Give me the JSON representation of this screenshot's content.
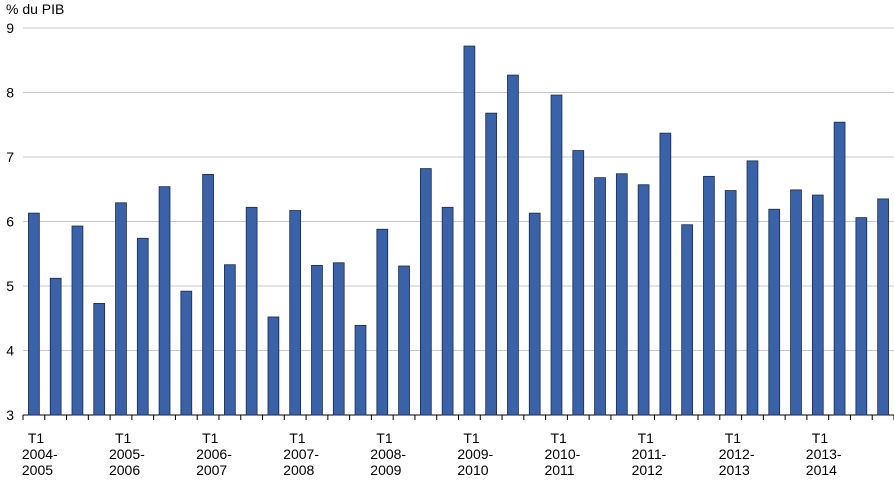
{
  "chart_data": {
    "type": "bar",
    "y_label": "% du PIB",
    "categories": [
      "T1 2004-2005",
      null,
      null,
      null,
      "T1 2005-2006",
      null,
      null,
      null,
      "T1 2006-2007",
      null,
      null,
      null,
      "T1 2007-2008",
      null,
      null,
      null,
      "T1 2008-2009",
      null,
      null,
      null,
      "T1 2009-2010",
      null,
      null,
      null,
      "T1 2010-2011",
      null,
      null,
      null,
      "T1 2011-2012",
      null,
      null,
      null,
      "T1 2012-2013",
      null,
      null,
      null,
      "T1 2013-2014",
      null,
      null,
      null
    ],
    "values": [
      6.13,
      5.12,
      5.93,
      4.73,
      6.29,
      5.74,
      6.54,
      4.92,
      6.73,
      5.33,
      6.22,
      4.52,
      6.17,
      5.32,
      5.36,
      4.39,
      5.88,
      5.31,
      6.82,
      6.22,
      8.72,
      7.68,
      8.27,
      6.13,
      7.96,
      7.1,
      6.68,
      6.74,
      6.57,
      7.37,
      5.95,
      6.7,
      6.48,
      6.94,
      6.19,
      6.49,
      6.41,
      7.54,
      6.06,
      6.35
    ],
    "color": "#3a62a8",
    "ylim": [
      3,
      9
    ],
    "yticks": [
      3,
      4,
      5,
      6,
      7,
      8,
      9
    ],
    "grid": true
  }
}
